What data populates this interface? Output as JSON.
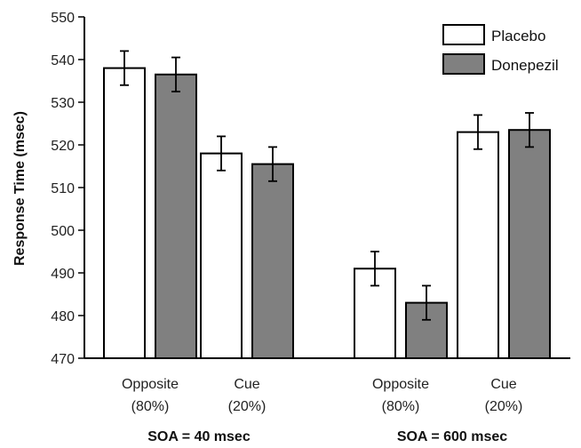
{
  "chart_data": {
    "type": "bar",
    "ylabel": "Response Time (msec)",
    "ylim": [
      470,
      550
    ],
    "yticks": [
      470,
      480,
      490,
      500,
      510,
      520,
      530,
      540,
      550
    ],
    "grid": false,
    "legend_position": "top-right",
    "groups": [
      {
        "label": "SOA = 40 msec",
        "categories": [
          {
            "line1": "Opposite",
            "line2": "(80%)"
          },
          {
            "line1": "Cue",
            "line2": "(20%)"
          }
        ]
      },
      {
        "label": "SOA = 600 msec",
        "categories": [
          {
            "line1": "Opposite",
            "line2": "(80%)"
          },
          {
            "line1": "Cue",
            "line2": "(20%)"
          }
        ]
      }
    ],
    "series": [
      {
        "name": "Placebo",
        "color": "#ffffff",
        "values": [
          538,
          518,
          491,
          523
        ],
        "errors": [
          4,
          4,
          4,
          4
        ]
      },
      {
        "name": "Donepezil",
        "color": "#808080",
        "values": [
          536.5,
          515.5,
          483,
          523.5
        ],
        "errors": [
          4,
          4,
          4,
          4
        ]
      }
    ]
  }
}
